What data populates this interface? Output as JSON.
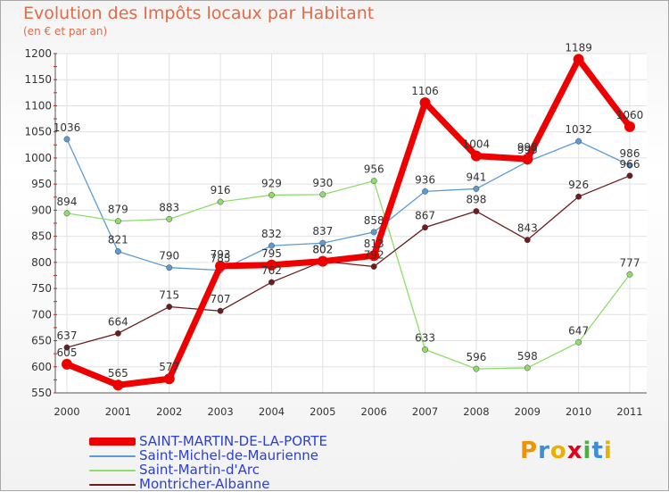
{
  "header": {
    "title": "Evolution des Impôts locaux par Habitant",
    "subtitle": "(en € et par an)"
  },
  "logo": {
    "text": "Proxiti",
    "colors": [
      "#f39200",
      "#3a8fd8",
      "#e8b000",
      "#e2001a",
      "#48b045",
      "#3a8fd8",
      "#e8b000"
    ]
  },
  "chart_data": {
    "type": "line",
    "x": [
      "2000",
      "2001",
      "2002",
      "2003",
      "2004",
      "2005",
      "2006",
      "2007",
      "2008",
      "2009",
      "2010",
      "2011"
    ],
    "ylim": [
      550,
      1200
    ],
    "yticks": [
      550,
      600,
      650,
      700,
      750,
      800,
      850,
      900,
      950,
      1000,
      1050,
      1100,
      1150,
      1200
    ],
    "grid": true,
    "legend_position": "bottom-left",
    "series": [
      {
        "name": "SAINT-MARTIN-DE-LA-PORTE",
        "color": "#ee0000",
        "bold": true,
        "values": [
          605,
          565,
          577,
          793,
          795,
          802,
          813,
          1106,
          1004,
          998,
          1189,
          1060
        ],
        "labels": [
          "605",
          "565",
          "577",
          "793",
          "795",
          "802",
          "813",
          "1106",
          "1004",
          "998",
          "1189",
          "1060"
        ]
      },
      {
        "name": "Saint-Michel-de-Maurienne",
        "color": "#5b9bd5",
        "bold": false,
        "values": [
          1036,
          821,
          790,
          785,
          832,
          837,
          858,
          936,
          941,
          993,
          1032,
          986
        ],
        "labels": [
          "1036",
          "821",
          "790",
          "785",
          "832",
          "837",
          "858",
          "936",
          "941",
          "993",
          "1032",
          "986"
        ]
      },
      {
        "name": "Saint-Martin-d'Arc",
        "color": "#8fdc6a",
        "bold": false,
        "values": [
          894,
          879,
          883,
          916,
          929,
          930,
          956,
          633,
          596,
          598,
          647,
          777
        ],
        "labels": [
          "894",
          "879",
          "883",
          "916",
          "929",
          "930",
          "956",
          "633",
          "596",
          "598",
          "647",
          "777"
        ]
      },
      {
        "name": "Montricher-Albanne",
        "color": "#6b1c1c",
        "bold": false,
        "values": [
          637,
          664,
          715,
          707,
          762,
          802,
          792,
          867,
          898,
          843,
          926,
          966
        ],
        "labels": [
          "637",
          "664",
          "715",
          "707",
          "762",
          "802",
          "792",
          "867",
          "898",
          "843",
          "926",
          "966"
        ]
      }
    ]
  }
}
